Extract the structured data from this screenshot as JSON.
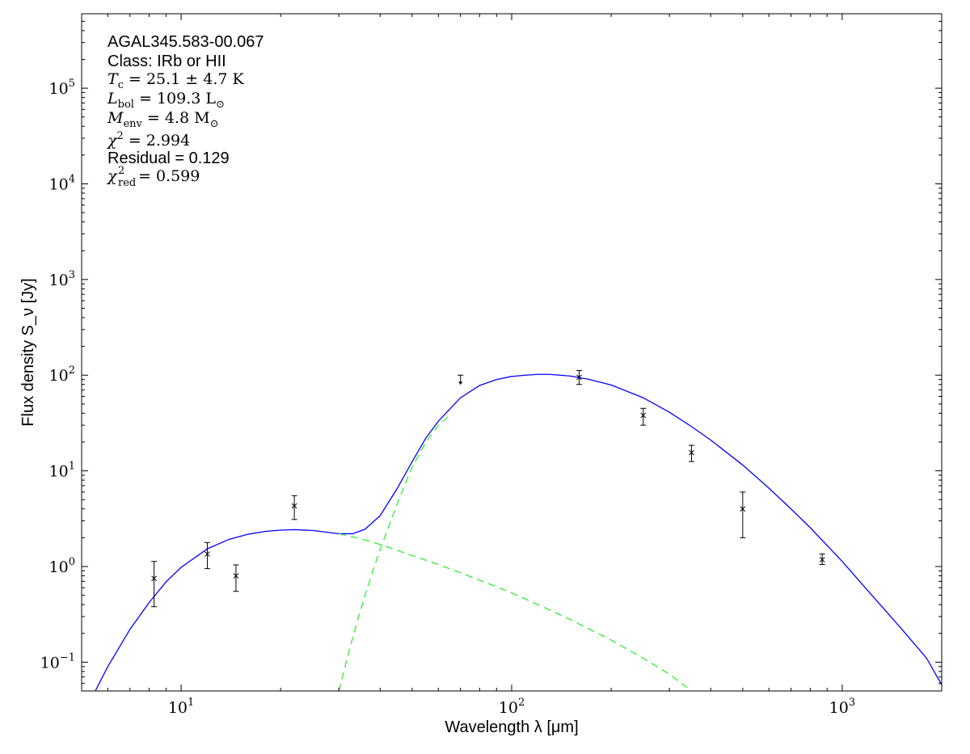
{
  "chart_data": {
    "type": "scatter",
    "xlabel": "Wavelength λ [μm]",
    "ylabel": "Flux density S_ν [Jy]",
    "xscale": "log",
    "yscale": "log",
    "xlim": [
      5,
      2000
    ],
    "ylim": [
      0.05,
      600000
    ],
    "x_ticks": [
      {
        "value": 10,
        "label": "10^1",
        "base": "10",
        "exp": "1"
      },
      {
        "value": 100,
        "label": "10^2",
        "base": "10",
        "exp": "2"
      },
      {
        "value": 1000,
        "label": "10^3",
        "base": "10",
        "exp": "3"
      }
    ],
    "y_ticks": [
      {
        "value": 0.1,
        "label": "10^-1",
        "base": "10",
        "exp": "−1"
      },
      {
        "value": 1,
        "label": "10^0",
        "base": "10",
        "exp": "0"
      },
      {
        "value": 10,
        "label": "10^1",
        "base": "10",
        "exp": "1"
      },
      {
        "value": 100,
        "label": "10^2",
        "base": "10",
        "exp": "2"
      },
      {
        "value": 1000,
        "label": "10^3",
        "base": "10",
        "exp": "3"
      },
      {
        "value": 10000,
        "label": "10^4",
        "base": "10",
        "exp": "4"
      },
      {
        "value": 100000,
        "label": "10^5",
        "base": "10",
        "exp": "5"
      }
    ],
    "grid": false,
    "annotations": {
      "source": "AGAL345.583-00.067",
      "class_line": "Class: IRb or HII",
      "tc": {
        "sym": "T",
        "sub": "c",
        "rest": " = 25.1 ± 4.7 K"
      },
      "lbol": {
        "sym": "L",
        "sub": "bol",
        "rest": " = 109.3 L",
        "rest_sub": "⊙"
      },
      "menv": {
        "sym": "M",
        "sub": "env",
        "rest": " = 4.8 M",
        "rest_sub": "⊙"
      },
      "chi2": {
        "sym": "χ",
        "sup": "2",
        "rest": " = 2.994"
      },
      "residual": "Residual = 0.129",
      "chi2red": {
        "sym": "χ",
        "sup": "2",
        "sub": "red",
        "rest": " = 0.599"
      }
    },
    "points": [
      {
        "x": 8.28,
        "y": 0.75,
        "err_lo": 0.37,
        "err_hi": 0.38
      },
      {
        "x": 12.0,
        "y": 1.35,
        "err_lo": 0.4,
        "err_hi": 0.43
      },
      {
        "x": 14.65,
        "y": 0.8,
        "err_lo": 0.25,
        "err_hi": 0.24
      },
      {
        "x": 22.0,
        "y": 4.3,
        "err_lo": 1.2,
        "err_hi": 1.2
      },
      {
        "x": 160.0,
        "y": 95.0,
        "err_lo": 15.0,
        "err_hi": 17.0
      },
      {
        "x": 250.0,
        "y": 38.0,
        "err_lo": 8.0,
        "err_hi": 7.0
      },
      {
        "x": 350.0,
        "y": 15.5,
        "err_lo": 3.0,
        "err_hi": 3.0
      },
      {
        "x": 500.0,
        "y": 4.0,
        "err_lo": 2.0,
        "err_hi": 2.0
      },
      {
        "x": 870.0,
        "y": 1.18,
        "err_lo": 0.13,
        "err_hi": 0.17
      }
    ],
    "upper_limits": [
      {
        "x": 70.0,
        "y": 100.0
      }
    ],
    "series": [
      {
        "role": "total-fit",
        "color": "#0000ff",
        "dash": "solid",
        "x": [
          5.5,
          6,
          7,
          8,
          9,
          10,
          12,
          14,
          16,
          18,
          20,
          22,
          25,
          28,
          30,
          33,
          36,
          40,
          45,
          50,
          55,
          60,
          70,
          80,
          90,
          100,
          110,
          120,
          130,
          150,
          170,
          200,
          250,
          300,
          350,
          400,
          500,
          600,
          700,
          800,
          1000,
          1200,
          1500,
          1800,
          2000
        ],
        "y": [
          0.05,
          0.09,
          0.22,
          0.42,
          0.69,
          0.98,
          1.53,
          1.93,
          2.18,
          2.33,
          2.4,
          2.43,
          2.38,
          2.27,
          2.2,
          2.2,
          2.45,
          3.4,
          6.5,
          12.5,
          22.0,
          33.0,
          58.0,
          78.0,
          90.0,
          97.0,
          100.0,
          102.0,
          102.0,
          98.0,
          91.0,
          79.0,
          58.0,
          41.0,
          29.0,
          21.0,
          11.5,
          6.6,
          4.0,
          2.55,
          1.13,
          0.55,
          0.23,
          0.11,
          0.058
        ]
      },
      {
        "role": "warm-component",
        "color": "#33ee33",
        "dash": "dashed",
        "x": [
          30,
          35,
          40,
          50,
          60,
          80,
          100,
          120,
          150,
          200,
          250,
          300,
          350
        ],
        "y": [
          2.2,
          1.95,
          1.7,
          1.3,
          1.05,
          0.72,
          0.53,
          0.4,
          0.28,
          0.17,
          0.11,
          0.075,
          0.05
        ]
      },
      {
        "role": "cold-component",
        "color": "#33ee33",
        "dash": "dashed",
        "x": [
          30,
          32,
          34,
          36,
          38,
          40,
          45,
          50,
          55,
          60,
          65
        ],
        "y": [
          0.05,
          0.12,
          0.26,
          0.5,
          0.9,
          1.5,
          4.5,
          11.0,
          20.0,
          30.0,
          38.0
        ]
      }
    ]
  }
}
